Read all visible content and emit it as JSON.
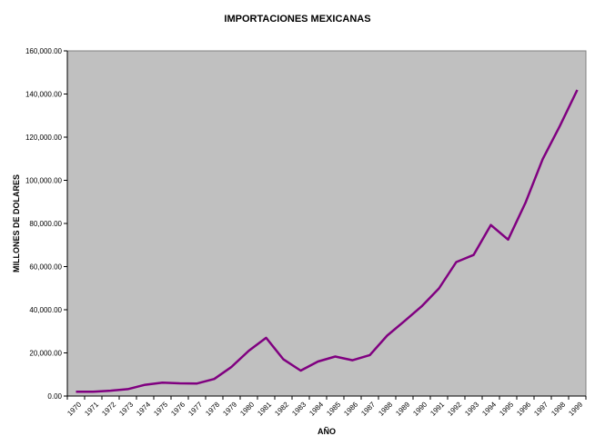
{
  "chart_data": {
    "type": "line",
    "title": "IMPORTACIONES MEXICANAS",
    "xlabel": "AÑO",
    "ylabel": "MILLONES DE DOLARES",
    "x": [
      "1970",
      "1971",
      "1972",
      "1973",
      "1974",
      "1975",
      "1976",
      "1977",
      "1978",
      "1979",
      "1980",
      "1981",
      "1982",
      "1983",
      "1984",
      "1985",
      "1986",
      "1987",
      "1988",
      "1989",
      "1990",
      "1991",
      "1992",
      "1993",
      "1994",
      "1995",
      "1996",
      "1997",
      "1998",
      "1999"
    ],
    "y_ticks": [
      "0.00",
      "20,000.00",
      "40,000.00",
      "60,000.00",
      "80,000.00",
      "100,000.00",
      "120,000.00",
      "140,000.00",
      "160,000.00"
    ],
    "ylim": [
      0,
      160000
    ],
    "series": [
      {
        "values": [
          2000,
          2000,
          2500,
          3200,
          5200,
          6200,
          5900,
          5800,
          7900,
          13500,
          21000,
          27000,
          17000,
          11800,
          16000,
          18300,
          16600,
          19000,
          28000,
          34700,
          41600,
          49900,
          62100,
          65400,
          79300,
          72500,
          89500,
          109800,
          125300,
          141900
        ],
        "color": "#800080"
      }
    ],
    "plot_background": "#c0c0c0",
    "grid": false,
    "legend": "none"
  }
}
